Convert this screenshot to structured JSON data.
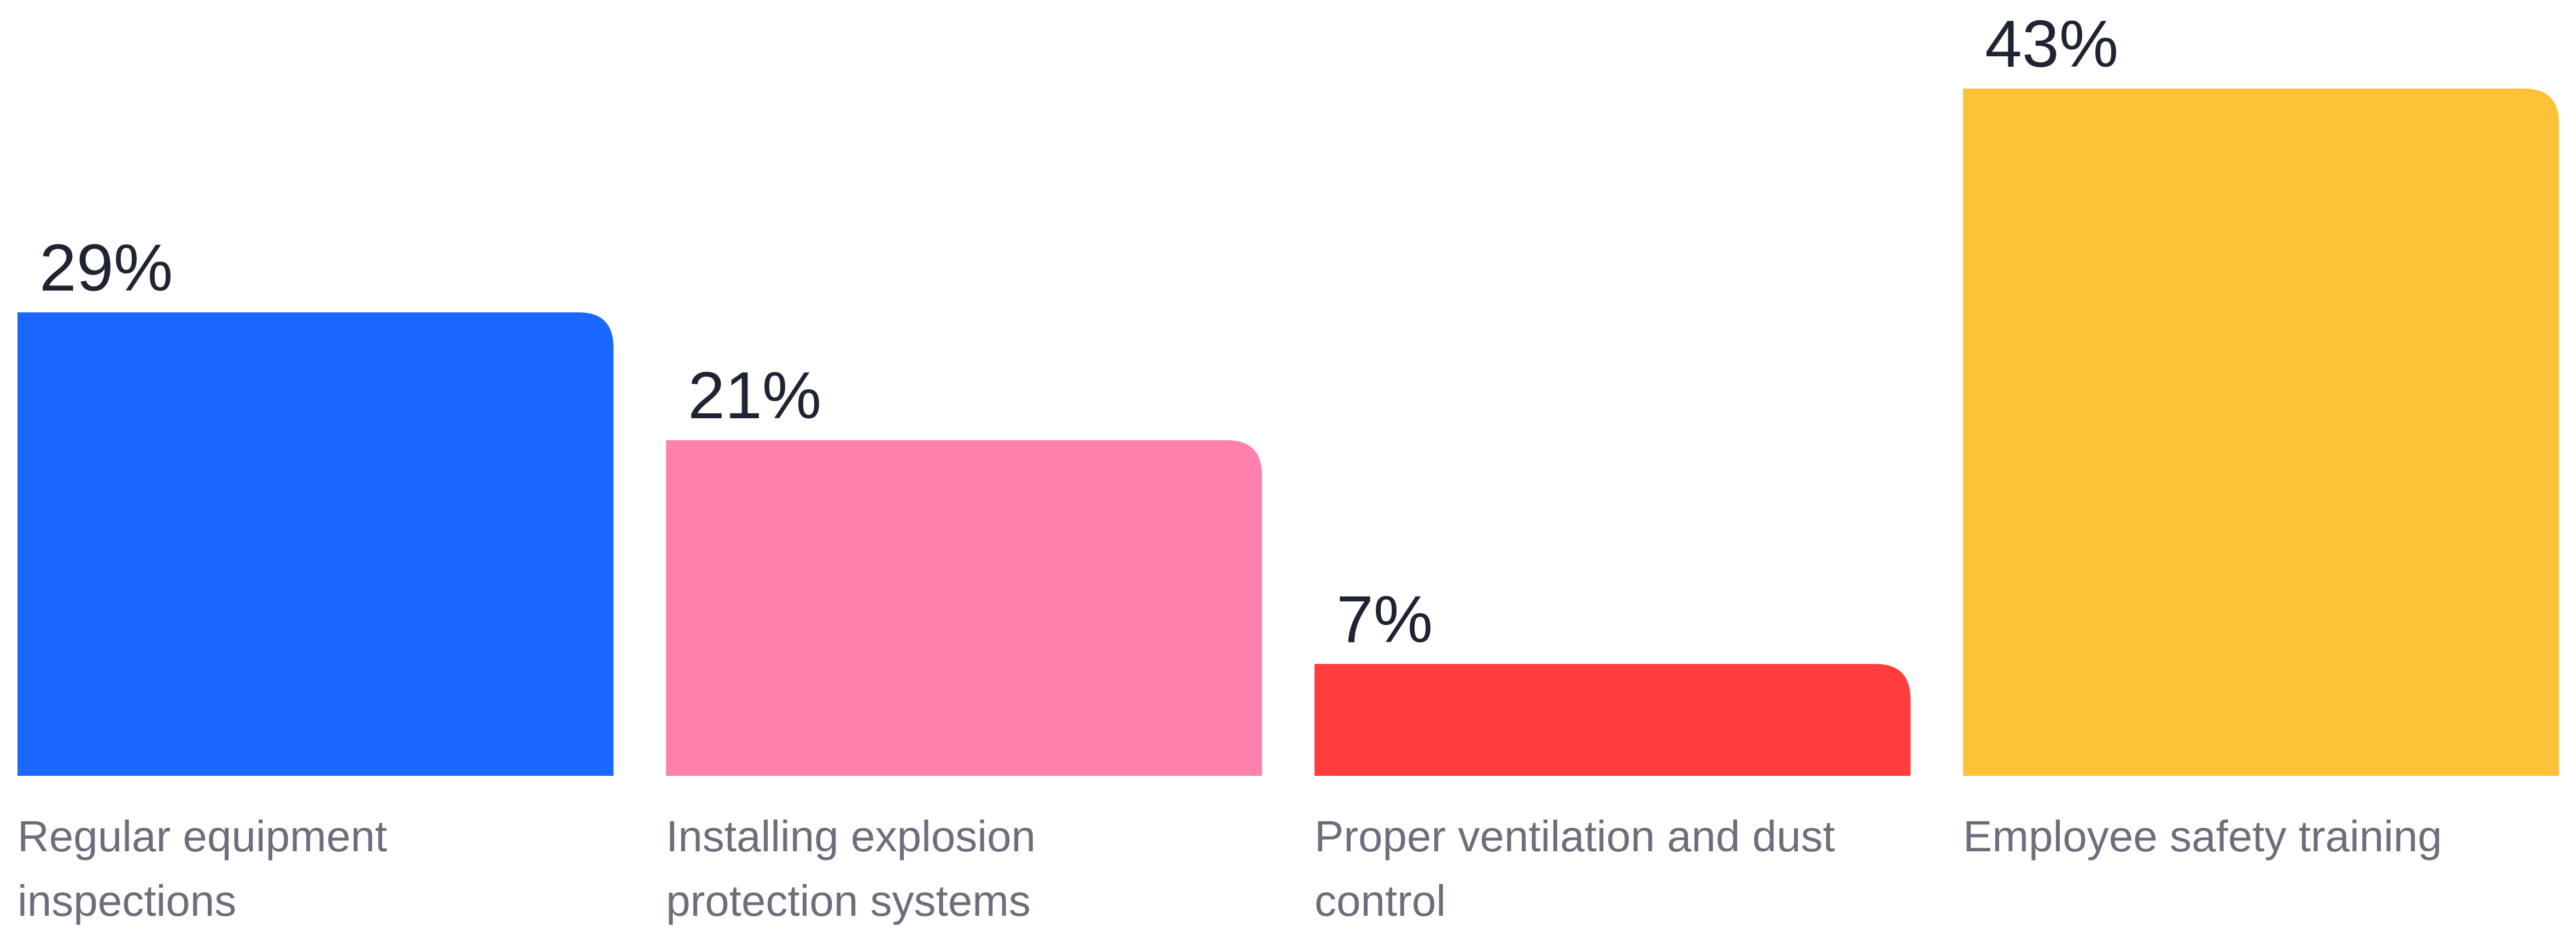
{
  "chart_data": {
    "type": "bar",
    "categories": [
      [
        "Regular equipment",
        "inspections"
      ],
      [
        "Installing explosion",
        "protection systems"
      ],
      [
        "Proper ventilation and dust",
        "control"
      ],
      [
        "Employee safety training"
      ]
    ],
    "values": [
      29,
      21,
      7,
      43
    ],
    "value_labels": [
      "29%",
      "21%",
      "7%",
      "43%"
    ],
    "colors": [
      "#1a68ff",
      "#ff80ab",
      "#ff3d3d",
      "#fcc237"
    ],
    "ylim": [
      0,
      43
    ],
    "grid": false,
    "legend": "none"
  }
}
